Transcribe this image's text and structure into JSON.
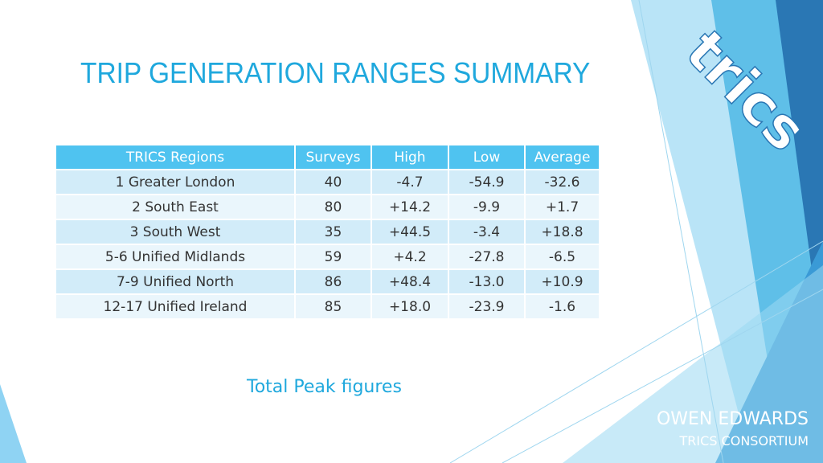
{
  "slide": {
    "title": "TRIP GENERATION RANGES SUMMARY",
    "caption": "Total Peak figures",
    "logo_text": "trics",
    "author_name": "OWEN EDWARDS",
    "author_org": "TRICS CONSORTIUM"
  },
  "table": {
    "headers": [
      "TRICS Regions",
      "Surveys",
      "High",
      "Low",
      "Average"
    ],
    "rows": [
      [
        "1 Greater London",
        "40",
        "-4.7",
        "-54.9",
        "-32.6"
      ],
      [
        "2 South East",
        "80",
        "+14.2",
        "-9.9",
        "+1.7"
      ],
      [
        "3 South West",
        "35",
        "+44.5",
        "-3.4",
        "+18.8"
      ],
      [
        "5-6 Unified Midlands",
        "59",
        "+4.2",
        "-27.8",
        "-6.5"
      ],
      [
        "7-9 Unified North",
        "86",
        "+48.4",
        "-13.0",
        "+10.9"
      ],
      [
        "12-17 Unified Ireland",
        "85",
        "+18.0",
        "-23.9",
        "-1.6"
      ]
    ]
  },
  "colors": {
    "accent": "#1fa8dd",
    "header_bg": "#4fc3f0",
    "row_dark": "#d2ecf9",
    "row_light": "#eaf6fc"
  }
}
